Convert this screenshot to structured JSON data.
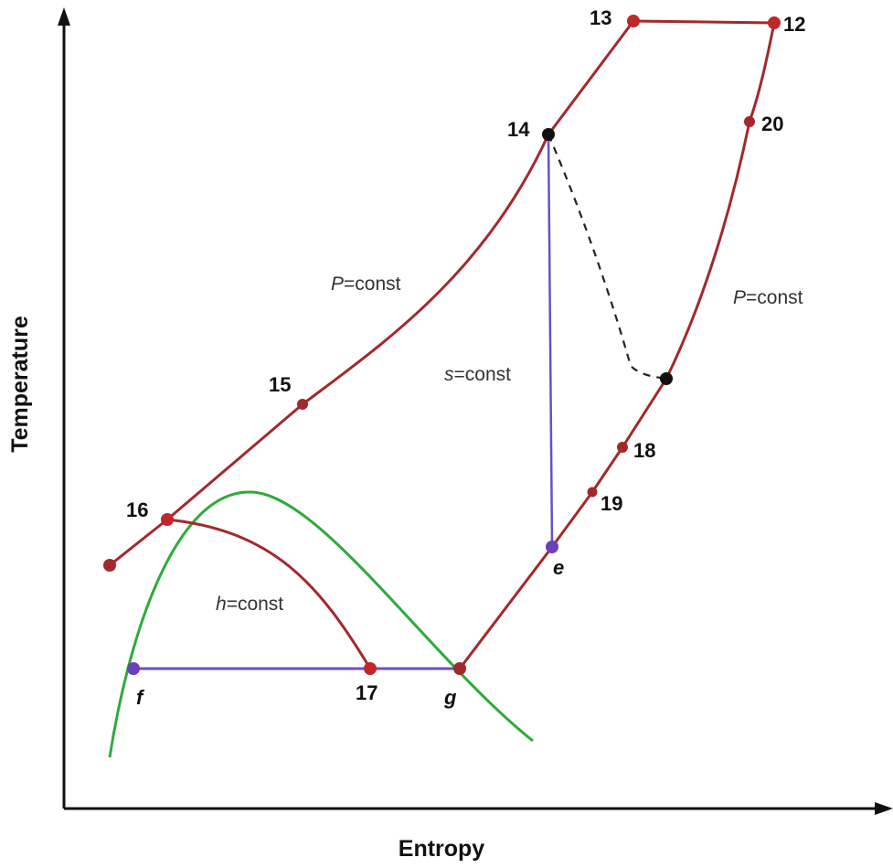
{
  "axes": {
    "x_label": "Entropy",
    "y_label": "Temperature"
  },
  "colors": {
    "cycle": "#a3282b",
    "saturation_dome": "#2eaa3c",
    "isentropic": "#6a4fc8",
    "isobar_purple": "#6a4fc8",
    "dashed": "#222222",
    "point_red": "#c0262a",
    "point_black": "#111111",
    "point_purple": "#6a3fb8"
  },
  "points": {
    "p12": "12",
    "p13": "13",
    "p14": "14",
    "p15": "15",
    "p16": "16",
    "p17": "17",
    "p18": "18",
    "p19": "19",
    "p20": "20",
    "pe": "e",
    "pf": "f",
    "pg": "g"
  },
  "annotations": {
    "p_const_left": {
      "symbol": "P",
      "text": "=const"
    },
    "p_const_right": {
      "symbol": "P",
      "text": "=const"
    },
    "s_const": {
      "symbol": "s",
      "text": "=const"
    },
    "h_const": {
      "symbol": "h",
      "text": "=const"
    }
  }
}
